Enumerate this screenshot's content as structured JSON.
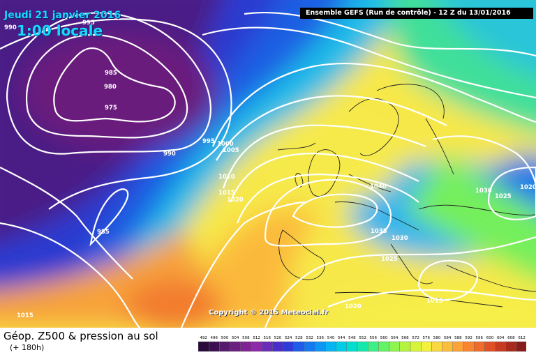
{
  "header": {
    "date": "Jeudi 21 janvier 2016",
    "time": "1:00 locale",
    "run_info": "Ensemble GEFS  (Run de contrôle)  -  12 Z du 13/01/2016"
  },
  "copyright": "Copyright © 2015 Meteociel.fr",
  "footer": {
    "product": "Géop. Z500 & pression au sol",
    "lead": "(+ 180h)"
  },
  "colorbar": {
    "labels": [
      "492",
      "496",
      "500",
      "504",
      "508",
      "512",
      "516",
      "520",
      "524",
      "528",
      "532",
      "536",
      "540",
      "544",
      "548",
      "552",
      "556",
      "560",
      "564",
      "568",
      "572",
      "576",
      "580",
      "584",
      "588",
      "592",
      "596",
      "600",
      "604",
      "608",
      "612"
    ],
    "colors": [
      "#2a0a3a",
      "#3c0f52",
      "#551a6b",
      "#6b1f80",
      "#7f2394",
      "#8c2aa8",
      "#6a2db8",
      "#4a2ec9",
      "#2f3ad8",
      "#1f5ae8",
      "#1478f0",
      "#0d96f2",
      "#05b4f0",
      "#00cde8",
      "#00dfcf",
      "#14e9ab",
      "#3cef86",
      "#66f266",
      "#8ef44f",
      "#b4f43e",
      "#d8f43a",
      "#f4f03c",
      "#fbd83e",
      "#fcbd3b",
      "#fca236",
      "#f8852f",
      "#f06a2a",
      "#e04f25",
      "#c83a20",
      "#a82a1c",
      "#881c18"
    ]
  },
  "isobars": [
    "990",
    "995",
    "985",
    "980",
    "975",
    "990",
    "995",
    "1000",
    "1005",
    "1010",
    "1015",
    "1020",
    "985",
    "1015",
    "1040",
    "1035",
    "1030",
    "1025",
    "1030",
    "1025",
    "1020",
    "1015",
    "1020"
  ]
}
